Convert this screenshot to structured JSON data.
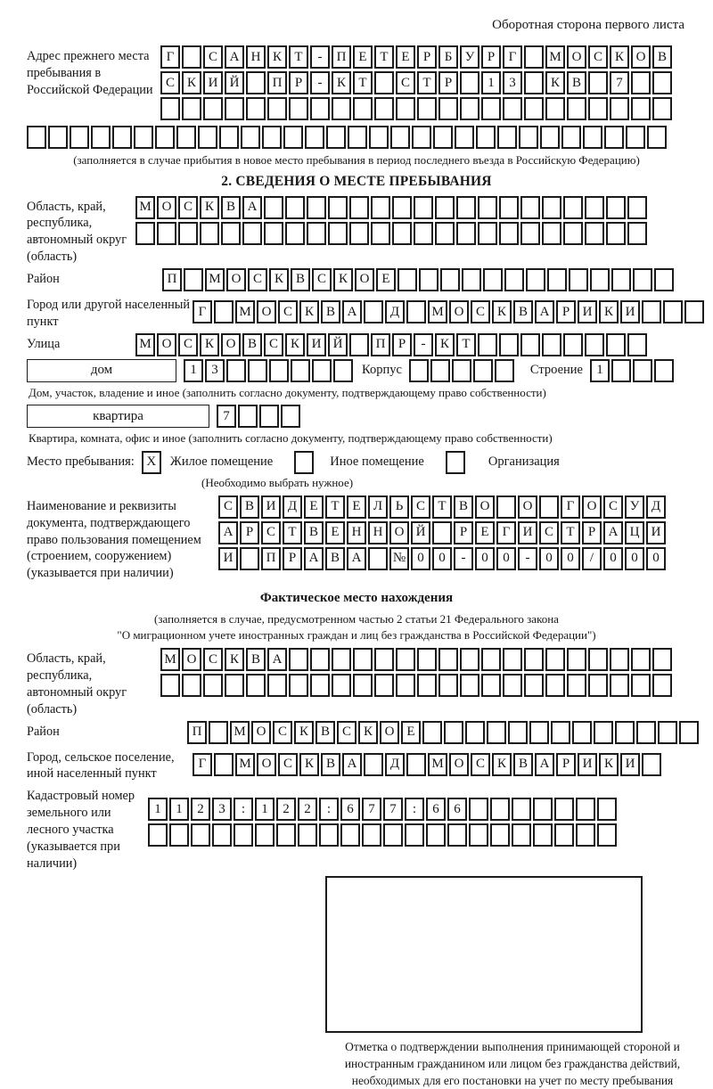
{
  "page": {
    "header_note": "Оборотная сторона первого листа"
  },
  "prev_address": {
    "label": "Адрес прежнего места пребывания в Российской Федерации",
    "rows": [
      {
        "len": 24,
        "value": "Г САНКТ-ПЕТЕРБУРГ МОСКОВ"
      },
      {
        "len": 24,
        "value": "СКИЙ ПР-КТ СТР 13 КВ 7"
      },
      {
        "len": 24,
        "value": ""
      }
    ],
    "full_row": {
      "len": 30,
      "value": ""
    },
    "caption": "(заполняется в случае прибытия в новое место пребывания в период последнего въезда в Российскую Федерацию)"
  },
  "section2": {
    "title": "2. СВЕДЕНИЯ О МЕСТЕ ПРЕБЫВАНИЯ",
    "region": {
      "label": "Область, край, республика, автономный округ (область)",
      "rows": [
        {
          "len": 24,
          "value": "МОСКВА"
        },
        {
          "len": 24,
          "value": ""
        }
      ]
    },
    "district": {
      "label": "Район",
      "row": {
        "len": 24,
        "value": "П МОСКВСКОЕ"
      }
    },
    "city": {
      "label": "Город или другой населенный пункт",
      "row": {
        "len": 24,
        "value": "Г МОСКВА Д МОСКВАРИКИ"
      }
    },
    "street": {
      "label": "Улица",
      "row": {
        "len": 24,
        "value": "МОСКОВСКИЙ ПР-КТ"
      }
    },
    "house": {
      "box_label": "дом",
      "house_row": {
        "len": 8,
        "value": "13"
      },
      "korpus_label": "Корпус",
      "korpus_row": {
        "len": 5,
        "value": ""
      },
      "stroenie_label": "Строение",
      "stroenie_row": {
        "len": 4,
        "value": "1"
      },
      "caption": "Дом, участок, владение и иное (заполнить согласно документу, подтверждающему право собственности)"
    },
    "apartment": {
      "box_label": "квартира",
      "row": {
        "len": 4,
        "value": "7"
      },
      "caption": "Квартира, комната, офис и иное (заполнить согласно документу, подтверждающему право собственности)"
    },
    "stay_type": {
      "label": "Место пребывания:",
      "options": [
        {
          "value": "X",
          "label": "Жилое помещение"
        },
        {
          "value": "",
          "label": "Иное помещение"
        },
        {
          "value": "",
          "label": "Организация"
        }
      ],
      "hint": "(Необходимо выбрать нужное)"
    },
    "document": {
      "label": "Наименование и реквизиты документа, подтверждающего право пользования помещением (строением, сооружением) (указывается при наличии)",
      "rows": [
        {
          "len": 21,
          "value": "СВИДЕТЕЛЬСТВО О ГОСУД"
        },
        {
          "len": 21,
          "value": "АРСТВЕННОЙ РЕГИСТРАЦИ"
        },
        {
          "len": 21,
          "value": "И ПРАВА №00-00-00/000"
        }
      ]
    }
  },
  "actual_location": {
    "title": "Фактическое место нахождения",
    "caption_line1": "(заполняется в случае, предусмотренном частью 2 статьи 21 Федерального закона",
    "caption_line2": "\"О миграционном учете иностранных граждан и лиц без гражданства в Российской Федерации\")",
    "region": {
      "label": "Область, край, республика, автономный округ (область)",
      "rows": [
        {
          "len": 24,
          "value": "МОСКВА"
        },
        {
          "len": 24,
          "value": ""
        }
      ]
    },
    "district": {
      "label": "Район",
      "row": {
        "len": 24,
        "value": "П МОСКВСКОЕ"
      }
    },
    "city": {
      "label": "Город, сельское поселение, иной населенный пункт",
      "row": {
        "len": 22,
        "value": "Г МОСКВА Д МОСКВАРИКИ"
      }
    },
    "cadastral": {
      "label": "Кадастровый номер земельного или лесного участка (указывается при наличии)",
      "rows": [
        {
          "len": 22,
          "value": "1123:122:677:66"
        },
        {
          "len": 22,
          "value": ""
        }
      ]
    },
    "stamp_caption": "Отметка о подтверждении выполнения принимающей стороной и иностранным гражданином или лицом без гражданства действий, необходимых для его постановки на учет по месту пребывания"
  }
}
